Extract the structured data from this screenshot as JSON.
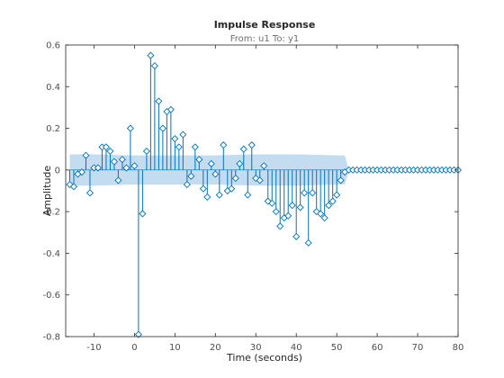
{
  "chart_data": {
    "type": "scatter",
    "style": "stem",
    "title": "Impulse Response",
    "subtitle": "From: u1  To: y1",
    "xlabel": "Time (seconds)",
    "ylabel": "Amplitude",
    "xlim": [
      -17,
      80
    ],
    "ylim": [
      -0.8,
      0.6
    ],
    "xticks": [
      -10,
      0,
      10,
      20,
      30,
      40,
      50,
      60,
      70,
      80
    ],
    "xtick_labels": [
      "-10",
      "0",
      "10",
      "20",
      "30",
      "40",
      "50",
      "60",
      "70",
      "80"
    ],
    "yticks": [
      -0.8,
      -0.6,
      -0.4,
      -0.2,
      0,
      0.2,
      0.4,
      0.6
    ],
    "ytick_labels": [
      "-0.8",
      "-0.6",
      "-0.4",
      "-0.2",
      "0",
      "0.2",
      "0.4",
      "0.6"
    ],
    "grid": false,
    "colors": {
      "stem": "#0072bd",
      "confidence_band": "#c3dcf0",
      "axes": "#262626"
    },
    "confidence_band": {
      "x": [
        -16,
        -10,
        0,
        10,
        20,
        30,
        40,
        50,
        52,
        53
      ],
      "upper": [
        0.075,
        0.075,
        0.07,
        0.07,
        0.07,
        0.075,
        0.075,
        0.07,
        0.07,
        0
      ],
      "lower": [
        -0.075,
        -0.075,
        -0.07,
        -0.07,
        -0.07,
        -0.075,
        -0.075,
        -0.07,
        -0.07,
        0
      ]
    },
    "series": [
      {
        "x": [
          -16,
          -15,
          -14,
          -13,
          -12,
          -11,
          -10,
          -9,
          -8,
          -7,
          -6,
          -5,
          -4,
          -3,
          -2,
          -1,
          0,
          1,
          2,
          3,
          4,
          5,
          6,
          7,
          8,
          9,
          10,
          11,
          12,
          13,
          14,
          15,
          16,
          17,
          18,
          19,
          20,
          21,
          22,
          23,
          24,
          25,
          26,
          27,
          28,
          29,
          30,
          31,
          32,
          33,
          34,
          35,
          36,
          37,
          38,
          39,
          40,
          41,
          42,
          43,
          44,
          45,
          46,
          47,
          48,
          49,
          50,
          51,
          52,
          53,
          54,
          55,
          56,
          57,
          58,
          59,
          60,
          61,
          62,
          63,
          64,
          65,
          66,
          67,
          68,
          69,
          70,
          71,
          72,
          73,
          74,
          75,
          76,
          77,
          78,
          79,
          80
        ],
        "y": [
          -0.07,
          -0.08,
          -0.02,
          -0.01,
          0.07,
          -0.11,
          0.01,
          0.01,
          0.11,
          0.11,
          0.09,
          0.04,
          -0.05,
          0.05,
          0.01,
          0.2,
          0.02,
          -0.79,
          -0.21,
          0.09,
          0.55,
          0.5,
          0.33,
          0.2,
          0.28,
          0.29,
          0.15,
          0.11,
          0.17,
          -0.07,
          -0.03,
          0.11,
          0.05,
          -0.09,
          -0.13,
          0.03,
          -0.02,
          -0.12,
          0.12,
          -0.1,
          -0.09,
          -0.04,
          0.03,
          0.1,
          -0.12,
          0.12,
          -0.04,
          -0.05,
          0.02,
          -0.15,
          -0.16,
          -0.2,
          -0.27,
          -0.23,
          -0.22,
          -0.17,
          -0.32,
          -0.18,
          -0.11,
          -0.35,
          -0.11,
          -0.2,
          -0.21,
          -0.23,
          -0.17,
          -0.15,
          -0.12,
          -0.05,
          -0.01,
          0,
          0,
          0,
          0,
          0,
          0,
          0,
          0,
          0,
          0,
          0,
          0,
          0,
          0,
          0,
          0,
          0,
          0,
          0,
          0,
          0,
          0,
          0,
          0,
          0,
          0,
          0,
          0
        ]
      }
    ]
  }
}
